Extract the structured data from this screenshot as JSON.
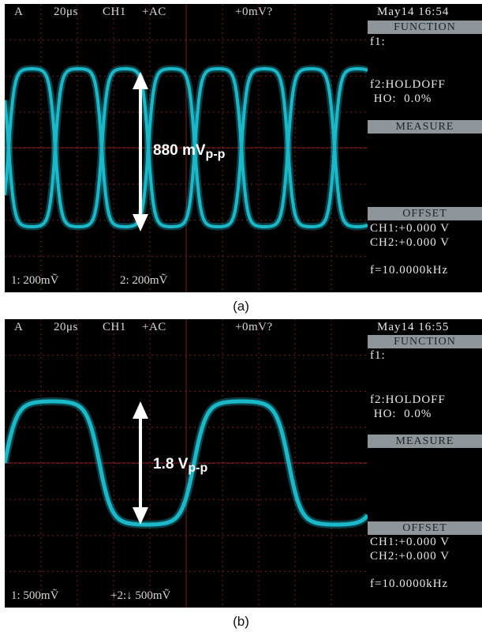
{
  "panels": [
    {
      "id": "a",
      "status": {
        "channel_mode": "A",
        "timebase": "20μs",
        "trigger_source": "CH1",
        "coupling": "+AC",
        "trigger_level": "+0mV?"
      },
      "datetime": "May14 16:54",
      "function": {
        "header": "FUNCTION",
        "f1": "f1:",
        "f2": "f2:HOLDOFF",
        "holdoff": " HO:  0.0%"
      },
      "measure": {
        "header": "MEASURE"
      },
      "offset": {
        "header": "OFFSET",
        "ch1": "CH1:+0.000 V",
        "ch2": "CH2:+0.000 V"
      },
      "frequency": "f=10.0000kHz",
      "scales": {
        "ch1": "1: 200mṼ",
        "ch2": "2:  200mṼ"
      },
      "amplitude": {
        "value": "880 mV",
        "unit_sub": "p-p"
      },
      "caption": "(a)"
    },
    {
      "id": "b",
      "status": {
        "channel_mode": "A",
        "timebase": "20μs",
        "trigger_source": "CH1",
        "coupling": "+AC",
        "trigger_level": "+0mV?"
      },
      "datetime": "May14 16:55",
      "function": {
        "header": "FUNCTION",
        "f1": "f1:",
        "f2": "f2:HOLDOFF",
        "holdoff": " HO:  0.0%"
      },
      "measure": {
        "header": "MEASURE"
      },
      "offset": {
        "header": "OFFSET",
        "ch1": "CH1:+0.000 V",
        "ch2": "CH2:+0.000 V"
      },
      "frequency": "f=10.0000kHz",
      "scales": {
        "ch1": "1: 500mṼ",
        "ch2": "+2:↓ 500mṼ"
      },
      "amplitude": {
        "value": "1.8 V",
        "unit_sub": "p-p"
      },
      "caption": "(b)"
    }
  ],
  "colors": {
    "trace": "#1bb8c9",
    "grid": "#7a1e1e",
    "screen": "#000000",
    "menu_header": "#8f969b",
    "arrow": "#ffffff"
  }
}
